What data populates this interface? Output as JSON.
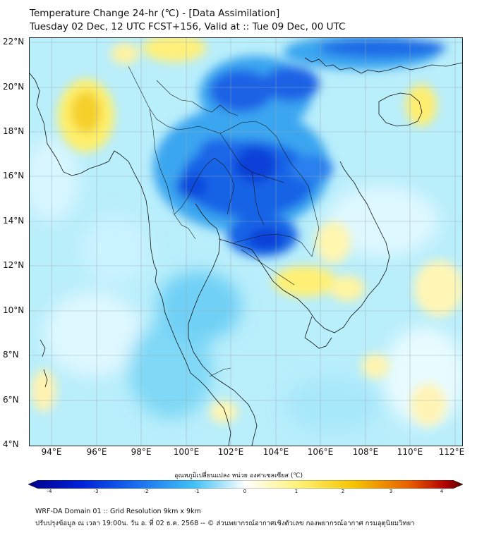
{
  "header": {
    "title_line1": "Temperature Change 24-hr (℃) - [Data Assimilation]",
    "title_line2": "Tuesday 02 Dec, 12 UTC FCST+156, Valid at :: Tue 09 Dec, 00 UTC"
  },
  "map": {
    "lat_labels": [
      "22°N",
      "20°N",
      "18°N",
      "16°N",
      "14°N",
      "12°N",
      "10°N",
      "8°N",
      "6°N",
      "4°N"
    ],
    "lon_labels": [
      "94°E",
      "96°E",
      "98°E",
      "100°E",
      "102°E",
      "104°E",
      "106°E",
      "108°E",
      "110°E",
      "112°E"
    ],
    "lat_range": [
      4,
      22.2
    ],
    "lon_range": [
      93,
      112.3
    ]
  },
  "colorbar": {
    "title": "อุณหภูมิเปลี่ยนแปลง หน่วย องศาเซลเซียส (℃)",
    "ticks": [
      "-4",
      "-3",
      "-2",
      "-1",
      "0",
      "1",
      "2",
      "3",
      "4"
    ],
    "min": -4,
    "max": 4,
    "stops": [
      "#00008a",
      "#0020d8",
      "#1a6ef0",
      "#3fc0f5",
      "#ffffff",
      "#fff27a",
      "#f5c400",
      "#e85a00",
      "#b00000",
      "#5a0000"
    ]
  },
  "footer": {
    "line1": "WRF-DA Domain 01 :: Grid Resolution 9km x 9km",
    "line2": "ปรับปรุงข้อมูล ณ เวลา 19:00น. วัน อ. ที่ 02 ธ.ค. 2568 -- © ส่วนพยากรณ์อากาศเชิงตัวเลข กองพยากรณ์อากาศ กรมอุตุนิยมวิทยา"
  }
}
